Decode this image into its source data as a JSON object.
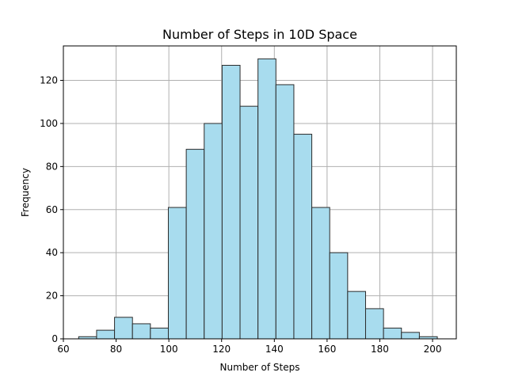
{
  "chart_data": {
    "type": "bar",
    "subtype": "histogram",
    "title": "Number of Steps in 10D Space",
    "xlabel": "Number of Steps",
    "ylabel": "Frequency",
    "xlim": [
      60,
      209
    ],
    "ylim": [
      0,
      136
    ],
    "xticks": [
      60,
      80,
      100,
      120,
      140,
      160,
      180,
      200
    ],
    "yticks": [
      0,
      20,
      40,
      60,
      80,
      100,
      120
    ],
    "grid": true,
    "bar_color": "#a8dcee",
    "edge_color": "#2b2b2b",
    "bins": [
      {
        "x0": 65.8,
        "x1": 72.6,
        "count": 1
      },
      {
        "x0": 72.6,
        "x1": 79.4,
        "count": 4
      },
      {
        "x0": 79.4,
        "x1": 86.2,
        "count": 10
      },
      {
        "x0": 86.2,
        "x1": 93.0,
        "count": 7
      },
      {
        "x0": 93.0,
        "x1": 99.8,
        "count": 5
      },
      {
        "x0": 99.8,
        "x1": 106.6,
        "count": 61
      },
      {
        "x0": 106.6,
        "x1": 113.4,
        "count": 88
      },
      {
        "x0": 113.4,
        "x1": 120.2,
        "count": 100
      },
      {
        "x0": 120.2,
        "x1": 127.0,
        "count": 127
      },
      {
        "x0": 127.0,
        "x1": 133.8,
        "count": 108
      },
      {
        "x0": 133.8,
        "x1": 140.6,
        "count": 130
      },
      {
        "x0": 140.6,
        "x1": 147.4,
        "count": 118
      },
      {
        "x0": 147.4,
        "x1": 154.2,
        "count": 95
      },
      {
        "x0": 154.2,
        "x1": 161.0,
        "count": 61
      },
      {
        "x0": 161.0,
        "x1": 167.8,
        "count": 40
      },
      {
        "x0": 167.8,
        "x1": 174.6,
        "count": 22
      },
      {
        "x0": 174.6,
        "x1": 181.4,
        "count": 14
      },
      {
        "x0": 181.4,
        "x1": 188.2,
        "count": 5
      },
      {
        "x0": 188.2,
        "x1": 195.0,
        "count": 3
      },
      {
        "x0": 195.0,
        "x1": 201.8,
        "count": 1
      }
    ]
  }
}
